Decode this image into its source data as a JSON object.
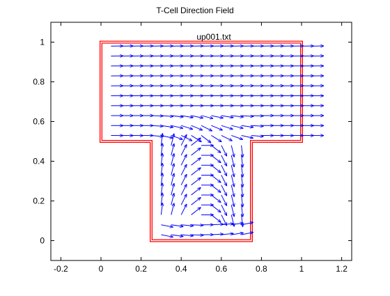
{
  "title": "T-Cell Direction Field",
  "chart_data": {
    "type": "quiver",
    "title": "T-Cell Direction Field",
    "annotation": "up001.txt",
    "xlim": [
      -0.25,
      1.25
    ],
    "ylim": [
      -0.1,
      1.1
    ],
    "xticks": [
      -0.2,
      0,
      0.2,
      0.4,
      0.6,
      0.8,
      1,
      1.2
    ],
    "xtick_labels": [
      "-0.2",
      "0",
      "0.2",
      "0.4",
      "0.6",
      "0.8",
      "1",
      "1.2"
    ],
    "yticks": [
      0,
      0.2,
      0.4,
      0.6,
      0.8,
      1
    ],
    "ytick_labels": [
      "0",
      "0.2",
      "0.4",
      "0.6",
      "0.8",
      "1"
    ],
    "grid": false,
    "boundary_color": "#ff0000",
    "arrow_color": "#0000ff",
    "boundary": [
      [
        0,
        1
      ],
      [
        1,
        1
      ],
      [
        1,
        0.5
      ],
      [
        0.75,
        0.5
      ],
      [
        0.75,
        0
      ],
      [
        0.25,
        0
      ],
      [
        0.25,
        0.5
      ],
      [
        0,
        0.5
      ]
    ],
    "field": {
      "top_region": {
        "x_start": 0.05,
        "x_end": 1.05,
        "x_step": 0.05,
        "y_start": 0.53,
        "y_end": 0.98,
        "y_step": 0.05
      },
      "stem_region": {
        "x_start": 0.3,
        "x_end": 0.7,
        "x_step": 0.05,
        "y_start": 0.03,
        "y_end": 0.48,
        "y_step": 0.05
      },
      "arrow_length": 0.06
    }
  }
}
